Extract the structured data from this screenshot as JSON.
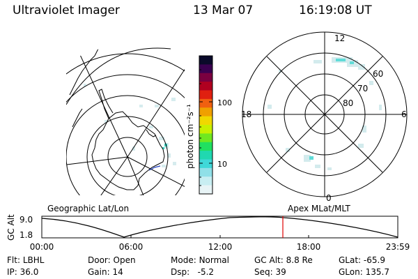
{
  "header": {
    "instrument": "Ultraviolet Imager",
    "date": "13 Mar 07",
    "time": "16:19:08 UT"
  },
  "colorbar": {
    "unit_label": "photon cm⁻²s⁻¹",
    "ticks": [
      "100",
      "10"
    ],
    "colors": [
      "#0a0a2a",
      "#3a0050",
      "#7a0040",
      "#b00020",
      "#e02010",
      "#f06010",
      "#f0a000",
      "#f0d800",
      "#c8f000",
      "#70e820",
      "#20e060",
      "#20d8b0",
      "#40d8d8",
      "#90e0e8",
      "#c8eef2",
      "#e8f4f6"
    ]
  },
  "polar_plot": {
    "hour_labels": {
      "top": "12",
      "left": "18",
      "right": "6",
      "bottom": "0"
    },
    "lat_labels": [
      "60",
      "70",
      "80"
    ]
  },
  "panel_labels": {
    "left": "Geographic Lat/Lon",
    "right": "Apex MLat/MLT"
  },
  "altitude_plot": {
    "axis_label": "GC Alt",
    "y_ticks": [
      "9.0",
      "1.8"
    ],
    "x_ticks": [
      "00:00",
      "06:00",
      "12:00",
      "18:00",
      "23:59"
    ],
    "marker_color": "#e00000"
  },
  "status": {
    "filter_label": "Flt:",
    "filter_value": "LBHL",
    "ip_label": "IP:",
    "ip_value": "36.0",
    "door_label": "Door:",
    "door_value": "Open",
    "gain_label": "Gain:",
    "gain_value": "14",
    "mode_label": "Mode:",
    "mode_value": "Normal",
    "dsp_label": "Dsp:",
    "dsp_value": "-5.2",
    "gcalt_label": "GC Alt:",
    "gcalt_value": "8.8 Re",
    "seq_label": "Seq:",
    "seq_value": "39",
    "glat_label": "GLat:",
    "glat_value": "-65.9",
    "glon_label": "GLon:",
    "glon_value": "135.7"
  }
}
